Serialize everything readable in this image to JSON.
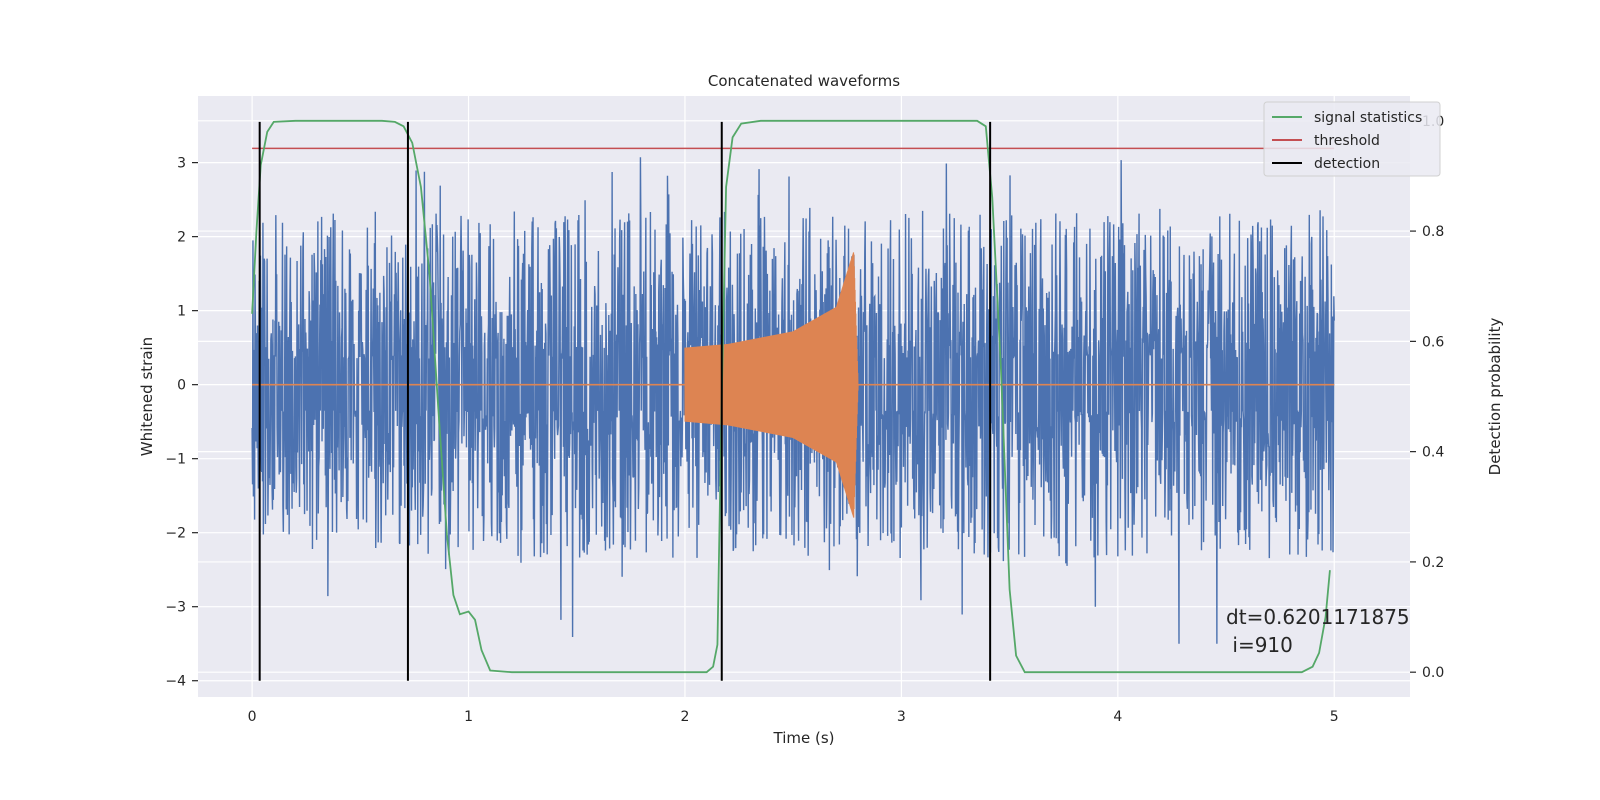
{
  "chart_data": {
    "type": "line",
    "title": "Concatenated waveforms",
    "xlabel": "Time (s)",
    "ylabel_left": "Whitened strain",
    "ylabel_right": "Detection probability",
    "xlim": [
      -0.25,
      5.35
    ],
    "ylim_left": [
      -4.22,
      3.9
    ],
    "ylim_right": [
      -0.045,
      1.045
    ],
    "x_ticks": [
      0,
      1,
      2,
      3,
      4,
      5
    ],
    "x_tick_labels": [
      "0",
      "1",
      "2",
      "3",
      "4",
      "5"
    ],
    "y_left_ticks": [
      -4,
      -3,
      -2,
      -1,
      0,
      1,
      2,
      3
    ],
    "y_left_tick_labels": [
      "−4",
      "−3",
      "−2",
      "−1",
      "0",
      "1",
      "2",
      "3"
    ],
    "y_right_ticks": [
      0.0,
      0.2,
      0.4,
      0.6,
      0.8,
      1.0
    ],
    "y_right_tick_labels": [
      "0.0",
      "0.2",
      "0.4",
      "0.6",
      "0.8",
      "1.0"
    ],
    "grid": true,
    "legend_position": "top-right",
    "legend": [
      {
        "label": "signal statistics",
        "color": "#55a868"
      },
      {
        "label": "threshold",
        "color": "#c44e52"
      },
      {
        "label": "detection",
        "color": "#000000"
      }
    ],
    "noise": {
      "color": "#4c72b0",
      "x_range": [
        0,
        5
      ],
      "typical_peak": 2.0,
      "max_peak": 3.5,
      "min_peak": -3.5
    },
    "injected_signal": {
      "color": "#dd8452",
      "x_range": [
        2.0,
        2.8
      ],
      "envelope": [
        [
          2.0,
          0.5
        ],
        [
          2.2,
          0.55
        ],
        [
          2.5,
          0.72
        ],
        [
          2.7,
          1.05
        ],
        [
          2.78,
          1.8
        ],
        [
          2.8,
          0.0
        ]
      ]
    },
    "series": [
      {
        "name": "signal statistics",
        "axis": "right",
        "color": "#55a868",
        "points": [
          [
            0.0,
            0.65
          ],
          [
            0.02,
            0.8
          ],
          [
            0.04,
            0.92
          ],
          [
            0.07,
            0.98
          ],
          [
            0.1,
            0.998
          ],
          [
            0.2,
            1.0
          ],
          [
            0.6,
            1.0
          ],
          [
            0.66,
            0.998
          ],
          [
            0.7,
            0.99
          ],
          [
            0.74,
            0.96
          ],
          [
            0.78,
            0.88
          ],
          [
            0.82,
            0.72
          ],
          [
            0.86,
            0.48
          ],
          [
            0.9,
            0.25
          ],
          [
            0.93,
            0.14
          ],
          [
            0.96,
            0.105
          ],
          [
            1.0,
            0.11
          ],
          [
            1.03,
            0.095
          ],
          [
            1.06,
            0.04
          ],
          [
            1.1,
            0.003
          ],
          [
            1.2,
            0.0
          ],
          [
            2.1,
            0.0
          ],
          [
            2.13,
            0.01
          ],
          [
            2.15,
            0.05
          ],
          [
            2.17,
            0.5
          ],
          [
            2.19,
            0.88
          ],
          [
            2.22,
            0.97
          ],
          [
            2.26,
            0.995
          ],
          [
            2.35,
            1.0
          ],
          [
            3.35,
            1.0
          ],
          [
            3.39,
            0.99
          ],
          [
            3.42,
            0.86
          ],
          [
            3.46,
            0.55
          ],
          [
            3.5,
            0.15
          ],
          [
            3.53,
            0.03
          ],
          [
            3.57,
            0.0
          ],
          [
            4.85,
            0.0
          ],
          [
            4.9,
            0.01
          ],
          [
            4.93,
            0.035
          ],
          [
            4.96,
            0.1
          ],
          [
            4.98,
            0.185
          ]
        ]
      },
      {
        "name": "threshold",
        "axis": "right",
        "color": "#c44e52",
        "points": [
          [
            0.0,
            0.95
          ],
          [
            5.0,
            0.95
          ]
        ]
      },
      {
        "name": "detection",
        "axis": "left",
        "color": "#000000",
        "vlines_x": [
          0.035,
          0.72,
          2.17,
          3.41
        ],
        "ymin": -4.0,
        "ymax": 3.55
      }
    ],
    "annotation": {
      "line1": "dt=0.6201171875",
      "line2": " i=910",
      "x": 4.5,
      "y_right": 0.1
    }
  }
}
